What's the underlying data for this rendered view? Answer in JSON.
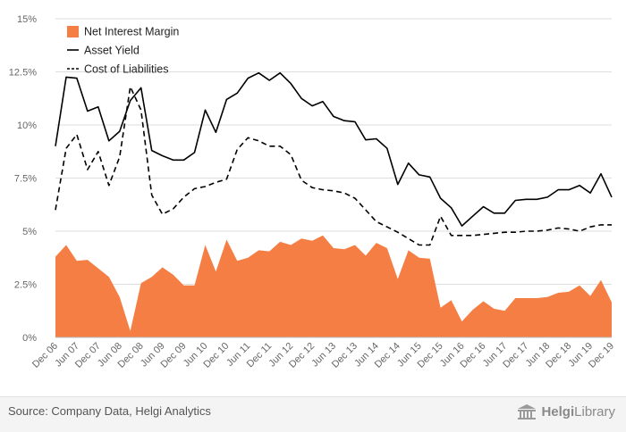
{
  "chart_data": {
    "type": "area",
    "x": [
      "Dec 06",
      "Mar 07",
      "Jun 07",
      "Sep 07",
      "Dec 07",
      "Mar 08",
      "Jun 08",
      "Sep 08",
      "Dec 08",
      "Mar 09",
      "Jun 09",
      "Sep 09",
      "Dec 09",
      "Mar 10",
      "Jun 10",
      "Sep 10",
      "Dec 10",
      "Mar 11",
      "Jun 11",
      "Sep 11",
      "Dec 11",
      "Mar 12",
      "Jun 12",
      "Sep 12",
      "Dec 12",
      "Mar 13",
      "Jun 13",
      "Sep 13",
      "Dec 13",
      "Mar 14",
      "Jun 14",
      "Sep 14",
      "Dec 14",
      "Mar 15",
      "Jun 15",
      "Sep 15",
      "Dec 15",
      "Mar 16",
      "Jun 16",
      "Sep 16",
      "Dec 16",
      "Mar 17",
      "Jun 17",
      "Sep 17",
      "Dec 17",
      "Mar 18",
      "Jun 18",
      "Sep 18",
      "Dec 18",
      "Mar 19",
      "Jun 19",
      "Sep 19",
      "Dec 19"
    ],
    "x_tick_labels": [
      "Dec 06",
      "Jun 07",
      "Dec 07",
      "Jun 08",
      "Dec 08",
      "Jun 09",
      "Dec 09",
      "Jun 10",
      "Dec 10",
      "Jun 11",
      "Dec 11",
      "Jun 12",
      "Dec 12",
      "Jun 13",
      "Dec 13",
      "Jun 14",
      "Dec 14",
      "Jun 15",
      "Dec 15",
      "Jun 16",
      "Dec 16",
      "Jun 17",
      "Dec 17",
      "Jun 18",
      "Dec 18",
      "Jun 19",
      "Dec 19"
    ],
    "y_ticks": [
      0,
      2.5,
      5,
      7.5,
      10,
      12.5,
      15
    ],
    "y_tick_labels": [
      "0%",
      "2.5%",
      "5%",
      "7.5%",
      "10%",
      "12.5%",
      "15%"
    ],
    "ylim": [
      0,
      15
    ],
    "grid": true,
    "legend_position": "top-left",
    "series": [
      {
        "name": "Net Interest Margin",
        "style": "area",
        "color": "#f47e43",
        "values": [
          3.8,
          4.35,
          3.6,
          3.65,
          3.25,
          2.85,
          1.9,
          0.3,
          2.55,
          2.85,
          3.3,
          2.95,
          2.45,
          2.45,
          4.35,
          3.1,
          4.6,
          3.6,
          3.75,
          4.1,
          4.05,
          4.5,
          4.35,
          4.65,
          4.55,
          4.8,
          4.2,
          4.15,
          4.35,
          3.85,
          4.45,
          4.2,
          2.75,
          4.1,
          3.75,
          3.7,
          1.4,
          1.75,
          0.75,
          1.3,
          1.7,
          1.35,
          1.25,
          1.85,
          1.85,
          1.85,
          1.9,
          2.1,
          2.15,
          2.45,
          1.95,
          2.7,
          1.65
        ]
      },
      {
        "name": "Asset Yield",
        "style": "solid",
        "color": "#000000",
        "values": [
          9.0,
          12.25,
          12.2,
          10.65,
          10.85,
          9.25,
          9.7,
          11.15,
          11.75,
          8.8,
          8.55,
          8.35,
          8.35,
          8.7,
          10.7,
          9.65,
          11.2,
          11.5,
          12.2,
          12.45,
          12.1,
          12.45,
          11.95,
          11.25,
          10.9,
          11.1,
          10.4,
          10.2,
          10.15,
          9.3,
          9.35,
          8.9,
          7.2,
          8.2,
          7.65,
          7.55,
          6.55,
          6.1,
          5.25,
          5.7,
          6.15,
          5.85,
          5.85,
          6.45,
          6.5,
          6.5,
          6.6,
          6.95,
          6.95,
          7.15,
          6.8,
          7.7,
          6.6
        ]
      },
      {
        "name": "Cost of Liabilities",
        "style": "dashed",
        "color": "#000000",
        "values": [
          6.0,
          8.9,
          9.55,
          7.9,
          8.75,
          7.15,
          8.5,
          11.8,
          10.7,
          6.7,
          5.8,
          6.05,
          6.6,
          7.0,
          7.1,
          7.3,
          7.45,
          8.85,
          9.4,
          9.25,
          9.0,
          9.0,
          8.6,
          7.4,
          7.05,
          6.95,
          6.9,
          6.8,
          6.55,
          6.0,
          5.45,
          5.2,
          4.95,
          4.65,
          4.35,
          4.35,
          5.7,
          4.8,
          4.8,
          4.8,
          4.85,
          4.9,
          4.95,
          4.95,
          5.0,
          5.0,
          5.05,
          5.15,
          5.1,
          5.0,
          5.2,
          5.3,
          5.3
        ]
      }
    ]
  },
  "footer": {
    "source": "Source: Company Data, Helgi Analytics",
    "brand_part1": "Helgi",
    "brand_part2": "Library"
  }
}
